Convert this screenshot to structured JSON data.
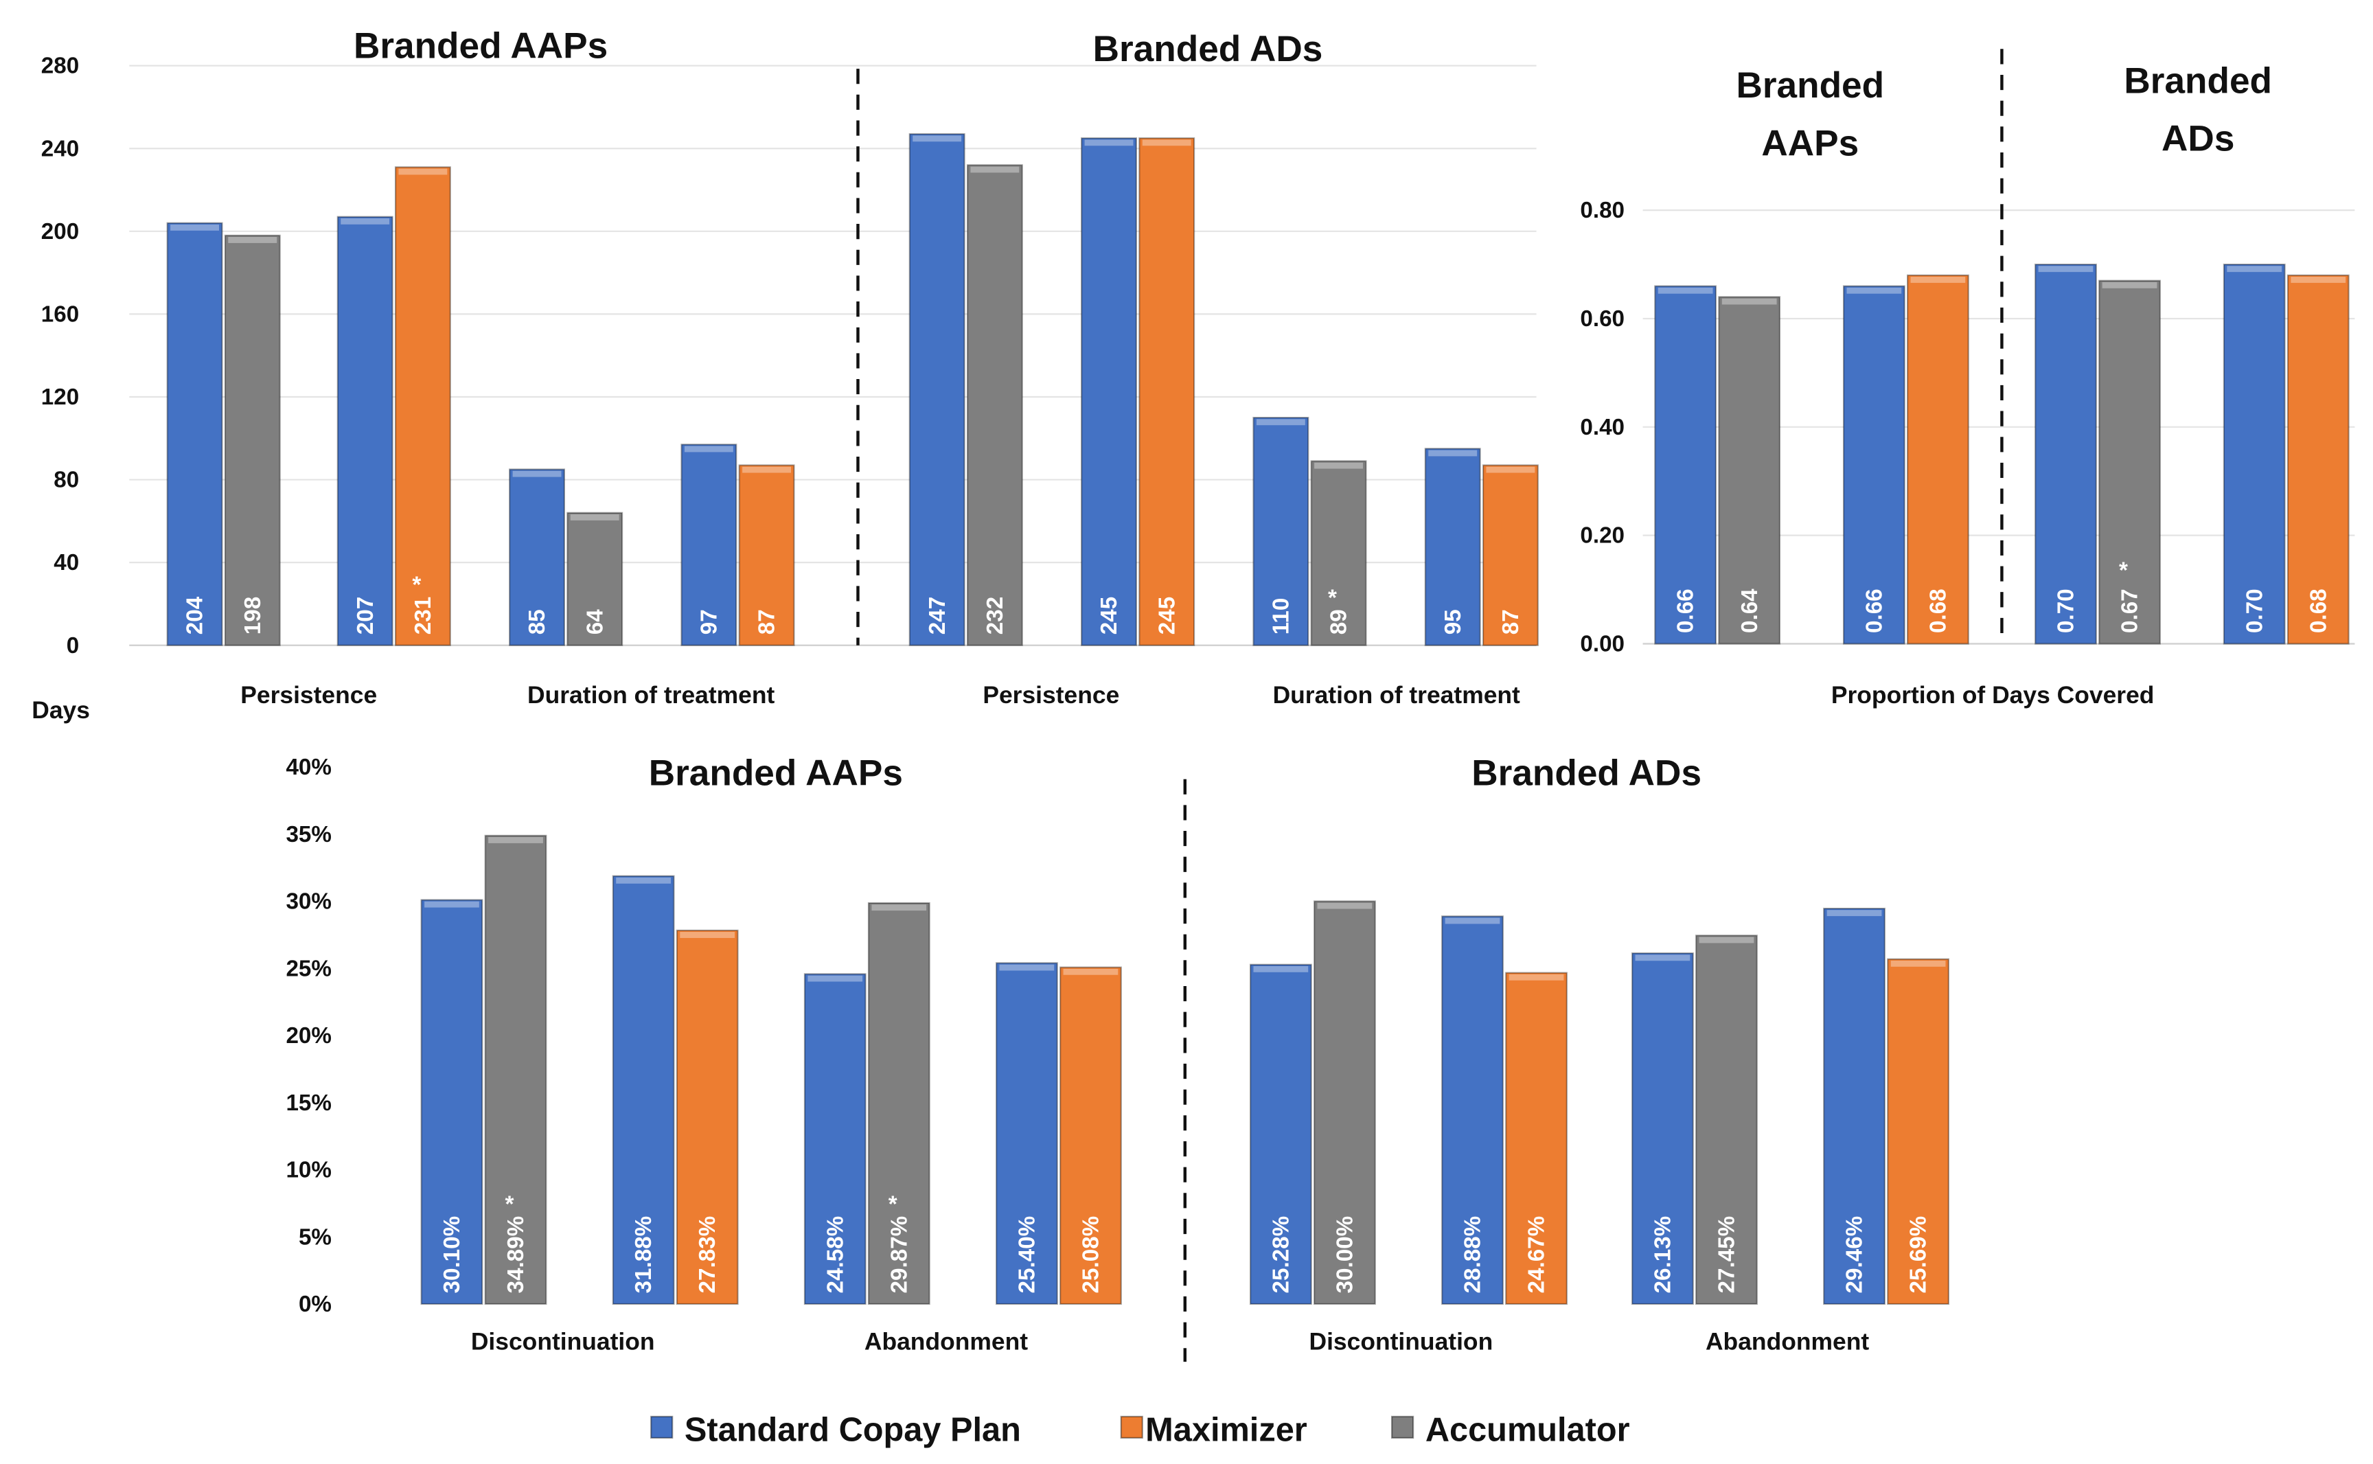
{
  "series": [
    {
      "name": "Standard Copay Plan",
      "color": "#4472C4"
    },
    {
      "name": "Maximizer",
      "color": "#ED7D31"
    },
    {
      "name": "Accumulator",
      "color": "#7F7F7F"
    }
  ],
  "significance_marker": "*",
  "chart_data": [
    {
      "type": "bar",
      "ylabel": "Days",
      "ylim": [
        0,
        280
      ],
      "yticks": [
        "0",
        "40",
        "80",
        "120",
        "160",
        "200",
        "240",
        "280"
      ],
      "grid": true,
      "panels": [
        {
          "title": "Branded AAPs",
          "groups": [
            {
              "category": "Persistence",
              "pairs": [
                [
                  {
                    "series": "Standard Copay Plan",
                    "value": 204,
                    "label": "204"
                  },
                  {
                    "series": "Accumulator",
                    "value": 198,
                    "label": "198"
                  }
                ],
                [
                  {
                    "series": "Standard Copay Plan",
                    "value": 207,
                    "label": "207"
                  },
                  {
                    "series": "Maximizer",
                    "value": 231,
                    "label": "231",
                    "significant": true
                  }
                ]
              ]
            },
            {
              "category": "Duration of treatment",
              "pairs": [
                [
                  {
                    "series": "Standard Copay Plan",
                    "value": 85,
                    "label": "85"
                  },
                  {
                    "series": "Accumulator",
                    "value": 64,
                    "label": "64"
                  }
                ],
                [
                  {
                    "series": "Standard Copay Plan",
                    "value": 97,
                    "label": "97"
                  },
                  {
                    "series": "Maximizer",
                    "value": 87,
                    "label": "87"
                  }
                ]
              ]
            }
          ]
        },
        {
          "title": "Branded ADs",
          "groups": [
            {
              "category": "Persistence",
              "pairs": [
                [
                  {
                    "series": "Standard Copay Plan",
                    "value": 247,
                    "label": "247"
                  },
                  {
                    "series": "Accumulator",
                    "value": 232,
                    "label": "232"
                  }
                ],
                [
                  {
                    "series": "Standard Copay Plan",
                    "value": 245,
                    "label": "245"
                  },
                  {
                    "series": "Maximizer",
                    "value": 245,
                    "label": "245"
                  }
                ]
              ]
            },
            {
              "category": "Duration of treatment",
              "pairs": [
                [
                  {
                    "series": "Standard Copay Plan",
                    "value": 110,
                    "label": "110"
                  },
                  {
                    "series": "Accumulator",
                    "value": 89,
                    "label": "89",
                    "significant": true
                  }
                ],
                [
                  {
                    "series": "Standard Copay Plan",
                    "value": 95,
                    "label": "95"
                  },
                  {
                    "series": "Maximizer",
                    "value": 87,
                    "label": "87"
                  }
                ]
              ]
            }
          ]
        }
      ]
    },
    {
      "type": "bar",
      "ylim": [
        0,
        0.8
      ],
      "yticks": [
        "0.00",
        "0.20",
        "0.40",
        "0.60",
        "0.80"
      ],
      "grid": true,
      "xlabel": "Proportion of Days Covered",
      "panels": [
        {
          "title": [
            "Branded",
            "AAPs"
          ],
          "groups": [
            {
              "category": "",
              "pairs": [
                [
                  {
                    "series": "Standard Copay Plan",
                    "value": 0.66,
                    "label": "0.66"
                  },
                  {
                    "series": "Accumulator",
                    "value": 0.64,
                    "label": "0.64"
                  }
                ],
                [
                  {
                    "series": "Standard Copay Plan",
                    "value": 0.66,
                    "label": "0.66"
                  },
                  {
                    "series": "Maximizer",
                    "value": 0.68,
                    "label": "0.68"
                  }
                ]
              ]
            }
          ]
        },
        {
          "title": [
            "Branded",
            "ADs"
          ],
          "groups": [
            {
              "category": "",
              "pairs": [
                [
                  {
                    "series": "Standard Copay Plan",
                    "value": 0.7,
                    "label": "0.70"
                  },
                  {
                    "series": "Accumulator",
                    "value": 0.67,
                    "label": "0.67",
                    "significant": true
                  }
                ],
                [
                  {
                    "series": "Standard Copay Plan",
                    "value": 0.7,
                    "label": "0.70"
                  },
                  {
                    "series": "Maximizer",
                    "value": 0.68,
                    "label": "0.68"
                  }
                ]
              ]
            }
          ]
        }
      ]
    },
    {
      "type": "bar",
      "ylim": [
        0,
        40
      ],
      "yticks": [
        "0%",
        "5%",
        "10%",
        "15%",
        "20%",
        "25%",
        "30%",
        "35%",
        "40%"
      ],
      "grid": false,
      "panels": [
        {
          "title": "Branded AAPs",
          "groups": [
            {
              "category": "Discontinuation",
              "pairs": [
                [
                  {
                    "series": "Standard Copay Plan",
                    "value": 30.1,
                    "label": "30.10%"
                  },
                  {
                    "series": "Accumulator",
                    "value": 34.89,
                    "label": "34.89%",
                    "significant": true
                  }
                ],
                [
                  {
                    "series": "Standard Copay Plan",
                    "value": 31.88,
                    "label": "31.88%"
                  },
                  {
                    "series": "Maximizer",
                    "value": 27.83,
                    "label": "27.83%"
                  }
                ]
              ]
            },
            {
              "category": "Abandonment",
              "pairs": [
                [
                  {
                    "series": "Standard Copay Plan",
                    "value": 24.58,
                    "label": "24.58%"
                  },
                  {
                    "series": "Accumulator",
                    "value": 29.87,
                    "label": "29.87%",
                    "significant": true
                  }
                ],
                [
                  {
                    "series": "Standard Copay Plan",
                    "value": 25.4,
                    "label": "25.40%"
                  },
                  {
                    "series": "Maximizer",
                    "value": 25.08,
                    "label": "25.08%"
                  }
                ]
              ]
            }
          ]
        },
        {
          "title": "Branded ADs",
          "groups": [
            {
              "category": "Discontinuation",
              "pairs": [
                [
                  {
                    "series": "Standard Copay Plan",
                    "value": 25.28,
                    "label": "25.28%"
                  },
                  {
                    "series": "Accumulator",
                    "value": 30.0,
                    "label": "30.00%"
                  }
                ],
                [
                  {
                    "series": "Standard Copay Plan",
                    "value": 28.88,
                    "label": "28.88%"
                  },
                  {
                    "series": "Maximizer",
                    "value": 24.67,
                    "label": "24.67%"
                  }
                ]
              ]
            },
            {
              "category": "Abandonment",
              "pairs": [
                [
                  {
                    "series": "Standard Copay Plan",
                    "value": 26.13,
                    "label": "26.13%"
                  },
                  {
                    "series": "Accumulator",
                    "value": 27.45,
                    "label": "27.45%"
                  }
                ],
                [
                  {
                    "series": "Standard Copay Plan",
                    "value": 29.46,
                    "label": "29.46%"
                  },
                  {
                    "series": "Maximizer",
                    "value": 25.69,
                    "label": "25.69%"
                  }
                ]
              ]
            }
          ]
        }
      ]
    }
  ]
}
